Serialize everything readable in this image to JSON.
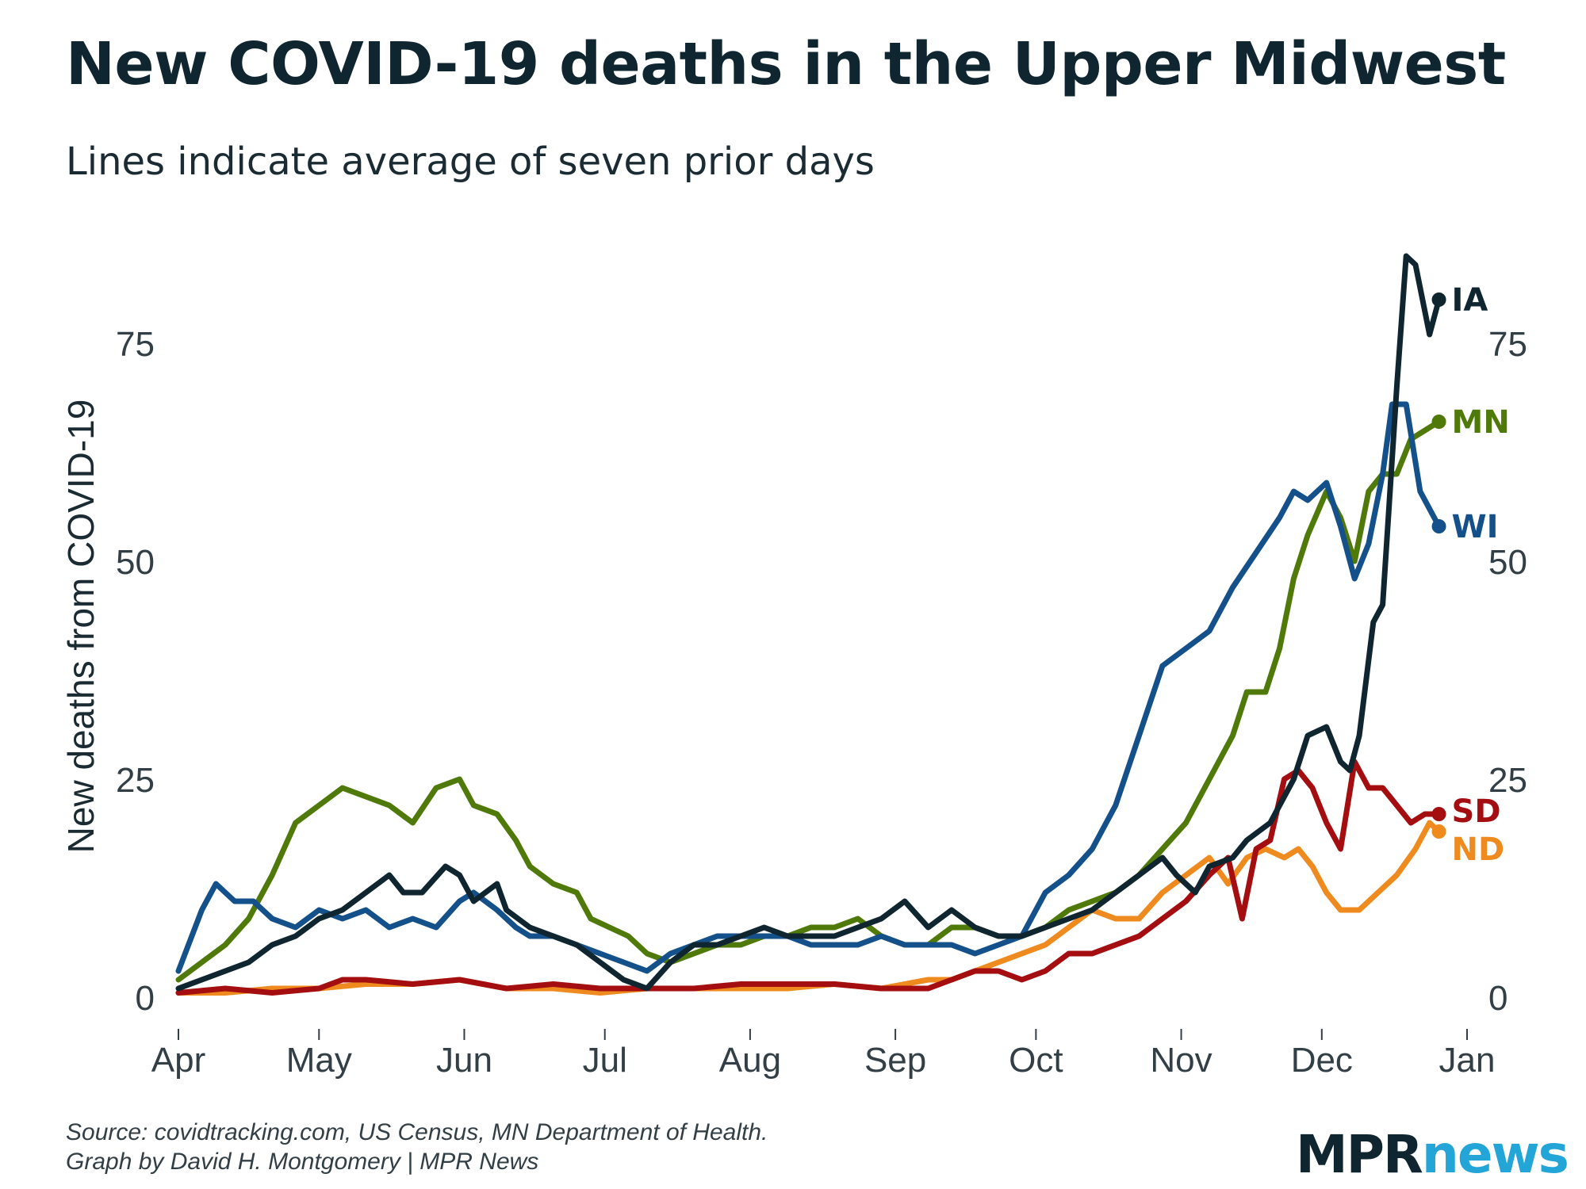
{
  "title": "New COVID-19 deaths in the Upper Midwest",
  "subtitle": "Lines indicate average of seven prior days",
  "source_line1": "Source: covidtracking.com, US Census, MN Department of Health.",
  "source_line2": "Graph by David H. Montgomery | MPR News",
  "logo": {
    "part1": "MPR",
    "part2": "news"
  },
  "colors": {
    "IA": "#0f2530",
    "MN": "#4f7a0a",
    "WI": "#14508a",
    "SD": "#a40e10",
    "ND": "#ef8a1e"
  },
  "chart_data": {
    "type": "line",
    "title": "New COVID-19 deaths in the Upper Midwest",
    "ylabel": "New deaths from COVID-19",
    "xlabel": "",
    "ylim": [
      0,
      90
    ],
    "xlim": [
      0,
      275
    ],
    "yticks": [
      0,
      25,
      50,
      75
    ],
    "ytick_labels": [
      "0",
      "25",
      "50",
      "75"
    ],
    "xticks": [
      0,
      30,
      61,
      91,
      122,
      153,
      183,
      214,
      244,
      275
    ],
    "xtick_labels": [
      "Apr",
      "May",
      "Jun",
      "Jul",
      "Aug",
      "Sep",
      "Oct",
      "Nov",
      "Dec",
      "Jan"
    ],
    "x_unit": "days since April 1",
    "series": [
      {
        "name": "IA",
        "label": "IA",
        "points": [
          [
            0,
            1
          ],
          [
            5,
            2
          ],
          [
            10,
            3
          ],
          [
            15,
            4
          ],
          [
            20,
            6
          ],
          [
            25,
            7
          ],
          [
            30,
            9
          ],
          [
            35,
            10
          ],
          [
            40,
            12
          ],
          [
            45,
            14
          ],
          [
            48,
            12
          ],
          [
            52,
            12
          ],
          [
            57,
            15
          ],
          [
            60,
            14
          ],
          [
            63,
            11
          ],
          [
            68,
            13
          ],
          [
            70,
            10
          ],
          [
            75,
            8
          ],
          [
            80,
            7
          ],
          [
            85,
            6
          ],
          [
            90,
            4
          ],
          [
            95,
            2
          ],
          [
            100,
            1
          ],
          [
            105,
            4
          ],
          [
            110,
            6
          ],
          [
            115,
            6
          ],
          [
            120,
            7
          ],
          [
            125,
            8
          ],
          [
            130,
            7
          ],
          [
            135,
            7
          ],
          [
            140,
            7
          ],
          [
            145,
            8
          ],
          [
            150,
            9
          ],
          [
            155,
            11
          ],
          [
            160,
            8
          ],
          [
            165,
            10
          ],
          [
            170,
            8
          ],
          [
            175,
            7
          ],
          [
            180,
            7
          ],
          [
            185,
            8
          ],
          [
            190,
            9
          ],
          [
            195,
            10
          ],
          [
            200,
            12
          ],
          [
            205,
            14
          ],
          [
            210,
            16
          ],
          [
            213,
            14
          ],
          [
            217,
            12
          ],
          [
            220,
            15
          ],
          [
            225,
            16
          ],
          [
            228,
            18
          ],
          [
            233,
            20
          ],
          [
            238,
            25
          ],
          [
            241,
            30
          ],
          [
            245,
            31
          ],
          [
            248,
            27
          ],
          [
            250,
            26
          ],
          [
            252,
            30
          ],
          [
            255,
            43
          ],
          [
            257,
            45
          ],
          [
            260,
            70
          ],
          [
            262,
            85
          ],
          [
            264,
            84
          ],
          [
            267,
            76
          ],
          [
            269,
            80
          ]
        ]
      },
      {
        "name": "MN",
        "label": "MN",
        "points": [
          [
            0,
            2
          ],
          [
            5,
            4
          ],
          [
            10,
            6
          ],
          [
            15,
            9
          ],
          [
            20,
            14
          ],
          [
            25,
            20
          ],
          [
            30,
            22
          ],
          [
            35,
            24
          ],
          [
            40,
            23
          ],
          [
            45,
            22
          ],
          [
            50,
            20
          ],
          [
            55,
            24
          ],
          [
            60,
            25
          ],
          [
            63,
            22
          ],
          [
            68,
            21
          ],
          [
            72,
            18
          ],
          [
            75,
            15
          ],
          [
            80,
            13
          ],
          [
            85,
            12
          ],
          [
            88,
            9
          ],
          [
            92,
            8
          ],
          [
            96,
            7
          ],
          [
            100,
            5
          ],
          [
            105,
            4
          ],
          [
            110,
            5
          ],
          [
            115,
            6
          ],
          [
            120,
            6
          ],
          [
            125,
            7
          ],
          [
            130,
            7
          ],
          [
            135,
            8
          ],
          [
            140,
            8
          ],
          [
            145,
            9
          ],
          [
            150,
            7
          ],
          [
            155,
            6
          ],
          [
            160,
            6
          ],
          [
            165,
            8
          ],
          [
            170,
            8
          ],
          [
            175,
            7
          ],
          [
            180,
            7
          ],
          [
            185,
            8
          ],
          [
            190,
            10
          ],
          [
            195,
            11
          ],
          [
            200,
            12
          ],
          [
            205,
            14
          ],
          [
            210,
            17
          ],
          [
            215,
            20
          ],
          [
            220,
            25
          ],
          [
            225,
            30
          ],
          [
            228,
            35
          ],
          [
            232,
            35
          ],
          [
            235,
            40
          ],
          [
            238,
            48
          ],
          [
            241,
            53
          ],
          [
            245,
            58
          ],
          [
            248,
            55
          ],
          [
            251,
            50
          ],
          [
            254,
            58
          ],
          [
            257,
            60
          ],
          [
            260,
            60
          ],
          [
            263,
            64
          ],
          [
            266,
            65
          ],
          [
            269,
            66
          ]
        ]
      },
      {
        "name": "WI",
        "label": "WI",
        "points": [
          [
            0,
            3
          ],
          [
            5,
            10
          ],
          [
            8,
            13
          ],
          [
            12,
            11
          ],
          [
            16,
            11
          ],
          [
            20,
            9
          ],
          [
            25,
            8
          ],
          [
            30,
            10
          ],
          [
            35,
            9
          ],
          [
            40,
            10
          ],
          [
            45,
            8
          ],
          [
            50,
            9
          ],
          [
            55,
            8
          ],
          [
            60,
            11
          ],
          [
            63,
            12
          ],
          [
            68,
            10
          ],
          [
            72,
            8
          ],
          [
            75,
            7
          ],
          [
            80,
            7
          ],
          [
            85,
            6
          ],
          [
            90,
            5
          ],
          [
            95,
            4
          ],
          [
            100,
            3
          ],
          [
            105,
            5
          ],
          [
            110,
            6
          ],
          [
            115,
            7
          ],
          [
            120,
            7
          ],
          [
            125,
            7
          ],
          [
            130,
            7
          ],
          [
            135,
            6
          ],
          [
            140,
            6
          ],
          [
            145,
            6
          ],
          [
            150,
            7
          ],
          [
            155,
            6
          ],
          [
            160,
            6
          ],
          [
            165,
            6
          ],
          [
            170,
            5
          ],
          [
            175,
            6
          ],
          [
            180,
            7
          ],
          [
            185,
            12
          ],
          [
            190,
            14
          ],
          [
            195,
            17
          ],
          [
            200,
            22
          ],
          [
            205,
            30
          ],
          [
            210,
            38
          ],
          [
            215,
            40
          ],
          [
            220,
            42
          ],
          [
            225,
            47
          ],
          [
            230,
            51
          ],
          [
            235,
            55
          ],
          [
            238,
            58
          ],
          [
            241,
            57
          ],
          [
            245,
            59
          ],
          [
            248,
            54
          ],
          [
            251,
            48
          ],
          [
            254,
            52
          ],
          [
            257,
            60
          ],
          [
            259,
            68
          ],
          [
            262,
            68
          ],
          [
            265,
            58
          ],
          [
            268,
            55
          ],
          [
            269,
            54
          ]
        ]
      },
      {
        "name": "SD",
        "label": "SD",
        "points": [
          [
            0,
            0.5
          ],
          [
            10,
            1
          ],
          [
            20,
            0.5
          ],
          [
            30,
            1
          ],
          [
            35,
            2
          ],
          [
            40,
            2
          ],
          [
            50,
            1.5
          ],
          [
            60,
            2
          ],
          [
            65,
            1.5
          ],
          [
            70,
            1
          ],
          [
            80,
            1.5
          ],
          [
            90,
            1
          ],
          [
            100,
            1
          ],
          [
            110,
            1
          ],
          [
            120,
            1.5
          ],
          [
            130,
            1.5
          ],
          [
            140,
            1.5
          ],
          [
            150,
            1
          ],
          [
            160,
            1
          ],
          [
            165,
            2
          ],
          [
            170,
            3
          ],
          [
            175,
            3
          ],
          [
            180,
            2
          ],
          [
            185,
            3
          ],
          [
            190,
            5
          ],
          [
            195,
            5
          ],
          [
            200,
            6
          ],
          [
            205,
            7
          ],
          [
            210,
            9
          ],
          [
            215,
            11
          ],
          [
            220,
            14
          ],
          [
            224,
            16
          ],
          [
            227,
            9
          ],
          [
            230,
            17
          ],
          [
            233,
            18
          ],
          [
            236,
            25
          ],
          [
            239,
            26
          ],
          [
            242,
            24
          ],
          [
            245,
            20
          ],
          [
            248,
            17
          ],
          [
            251,
            27
          ],
          [
            254,
            24
          ],
          [
            257,
            24
          ],
          [
            260,
            22
          ],
          [
            263,
            20
          ],
          [
            266,
            21
          ],
          [
            269,
            21
          ]
        ]
      },
      {
        "name": "ND",
        "label": "ND",
        "points": [
          [
            0,
            0.5
          ],
          [
            10,
            0.5
          ],
          [
            20,
            1
          ],
          [
            30,
            1
          ],
          [
            40,
            1.5
          ],
          [
            50,
            1.5
          ],
          [
            60,
            2
          ],
          [
            70,
            1
          ],
          [
            80,
            1
          ],
          [
            90,
            0.5
          ],
          [
            100,
            1
          ],
          [
            110,
            1
          ],
          [
            120,
            1
          ],
          [
            130,
            1
          ],
          [
            140,
            1.5
          ],
          [
            150,
            1
          ],
          [
            160,
            2
          ],
          [
            165,
            2
          ],
          [
            170,
            3
          ],
          [
            175,
            4
          ],
          [
            180,
            5
          ],
          [
            185,
            6
          ],
          [
            190,
            8
          ],
          [
            195,
            10
          ],
          [
            200,
            9
          ],
          [
            205,
            9
          ],
          [
            210,
            12
          ],
          [
            215,
            14
          ],
          [
            220,
            16
          ],
          [
            224,
            13
          ],
          [
            228,
            16
          ],
          [
            232,
            17
          ],
          [
            236,
            16
          ],
          [
            239,
            17
          ],
          [
            242,
            15
          ],
          [
            245,
            12
          ],
          [
            248,
            10
          ],
          [
            252,
            10
          ],
          [
            256,
            12
          ],
          [
            260,
            14
          ],
          [
            264,
            17
          ],
          [
            267,
            20
          ],
          [
            269,
            19
          ]
        ]
      }
    ]
  }
}
